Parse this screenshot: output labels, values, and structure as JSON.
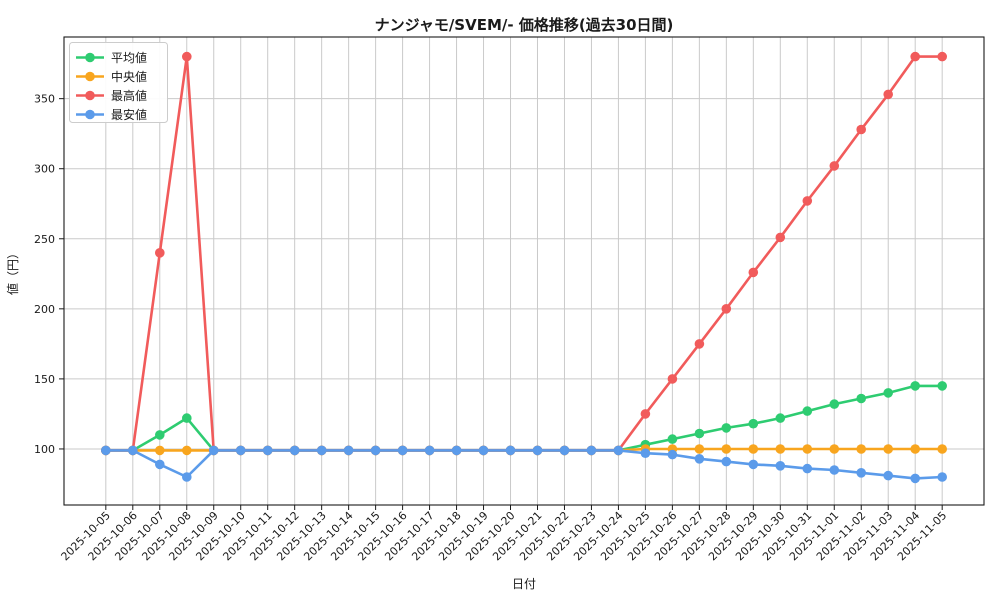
{
  "chart_data": {
    "type": "line",
    "title": "ナンジャモ/SVEM/- 価格推移(過去30日間)",
    "xlabel": "日付",
    "ylabel": "値（円）",
    "ylim": [
      60,
      394
    ],
    "yticks": [
      100,
      150,
      200,
      250,
      300,
      350
    ],
    "grid": true,
    "legend_position": "top-left",
    "axis_color": "#1a1a1a",
    "grid_color": "#cacaca",
    "background_color": "#ffffff",
    "categories": [
      "2025-10-05",
      "2025-10-06",
      "2025-10-07",
      "2025-10-08",
      "2025-10-09",
      "2025-10-10",
      "2025-10-11",
      "2025-10-12",
      "2025-10-13",
      "2025-10-14",
      "2025-10-15",
      "2025-10-16",
      "2025-10-17",
      "2025-10-18",
      "2025-10-19",
      "2025-10-20",
      "2025-10-21",
      "2025-10-22",
      "2025-10-23",
      "2025-10-24",
      "2025-10-25",
      "2025-10-26",
      "2025-10-27",
      "2025-10-28",
      "2025-10-29",
      "2025-10-30",
      "2025-10-31",
      "2025-11-01",
      "2025-11-02",
      "2025-11-03",
      "2025-11-04",
      "2025-11-05"
    ],
    "series": [
      {
        "key": "average",
        "name": "平均値",
        "color": "#2ecc71",
        "values": [
          99,
          99,
          110,
          122,
          99,
          99,
          99,
          99,
          99,
          99,
          99,
          99,
          99,
          99,
          99,
          99,
          99,
          99,
          99,
          99,
          103,
          107,
          111,
          115,
          118,
          122,
          127,
          132,
          136,
          140,
          145,
          145
        ]
      },
      {
        "key": "median",
        "name": "中央値",
        "color": "#f8a51e",
        "values": [
          99,
          99,
          99,
          99,
          99,
          99,
          99,
          99,
          99,
          99,
          99,
          99,
          99,
          99,
          99,
          99,
          99,
          99,
          99,
          99,
          100,
          100,
          100,
          100,
          100,
          100,
          100,
          100,
          100,
          100,
          100,
          100
        ]
      },
      {
        "key": "max",
        "name": "最高値",
        "color": "#f15b5b",
        "values": [
          99,
          99,
          240,
          380,
          99,
          99,
          99,
          99,
          99,
          99,
          99,
          99,
          99,
          99,
          99,
          99,
          99,
          99,
          99,
          99,
          125,
          150,
          175,
          200,
          226,
          251,
          277,
          302,
          328,
          353,
          380,
          380
        ]
      },
      {
        "key": "min",
        "name": "最安値",
        "color": "#5b9bea",
        "values": [
          99,
          99,
          89,
          80,
          99,
          99,
          99,
          99,
          99,
          99,
          99,
          99,
          99,
          99,
          99,
          99,
          99,
          99,
          99,
          99,
          97,
          96,
          93,
          91,
          89,
          88,
          86,
          85,
          83,
          81,
          79,
          80
        ]
      }
    ]
  }
}
